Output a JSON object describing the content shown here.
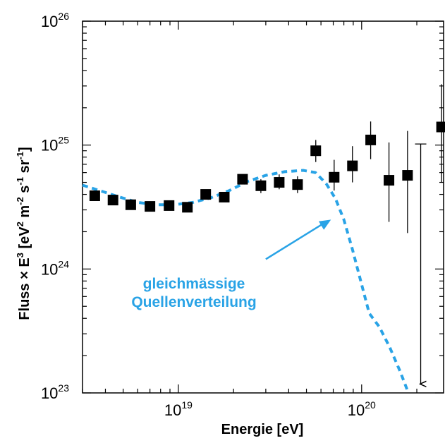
{
  "chart_data": {
    "type": "scatter",
    "xscale": "log",
    "yscale": "log",
    "xlim": [
      3e+18,
      2.8e+20
    ],
    "ylim": [
      1e+23,
      1e+26
    ],
    "x_ticks": [
      {
        "value": 1e+19,
        "base": "10",
        "exp": "19"
      },
      {
        "value": 1e+20,
        "base": "10",
        "exp": "20"
      }
    ],
    "y_ticks": [
      {
        "value": 1e+23,
        "base": "10",
        "exp": "23"
      },
      {
        "value": 1e+24,
        "base": "10",
        "exp": "24"
      },
      {
        "value": 1e+25,
        "base": "10",
        "exp": "25"
      },
      {
        "value": 1e+26,
        "base": "10",
        "exp": "26"
      }
    ],
    "xlabel": "Energie [eV]",
    "ylabel": {
      "parts": [
        {
          "t": "Fluss × E",
          "sup": false
        },
        {
          "t": "3",
          "sup": true
        },
        {
          "t": " [eV",
          "sup": false
        },
        {
          "t": "2",
          "sup": true
        },
        {
          "t": " m",
          "sup": false
        },
        {
          "t": "-2",
          "sup": true
        },
        {
          "t": " s",
          "sup": false
        },
        {
          "t": "-1",
          "sup": true
        },
        {
          "t": " sr",
          "sup": false
        },
        {
          "t": "-1",
          "sup": true
        },
        {
          "t": "]",
          "sup": false
        }
      ]
    },
    "grid": false,
    "series": [
      {
        "style": "markers",
        "color": "#000000",
        "points": [
          {
            "x": 3.5e+18,
            "y": 3.9e+24
          },
          {
            "x": 4.4e+18,
            "y": 3.6e+24
          },
          {
            "x": 5.5e+18,
            "y": 3.3e+24
          },
          {
            "x": 7e+18,
            "y": 3.2e+24
          },
          {
            "x": 8.9e+18,
            "y": 3.25e+24
          },
          {
            "x": 1.12e+19,
            "y": 3.15e+24
          },
          {
            "x": 1.41e+19,
            "y": 4e+24
          },
          {
            "x": 1.78e+19,
            "y": 3.8e+24
          },
          {
            "x": 2.24e+19,
            "y": 5.3e+24
          },
          {
            "x": 2.82e+19,
            "y": 4.7e+24,
            "yerr": [
              4.1e+24,
              5.3e+24
            ]
          },
          {
            "x": 3.55e+19,
            "y": 5e+24,
            "yerr": [
              4.4e+24,
              5.8e+24
            ]
          },
          {
            "x": 4.47e+19,
            "y": 4.8e+24,
            "yerr": [
              4.1e+24,
              5.6e+24
            ]
          },
          {
            "x": 5.62e+19,
            "y": 9e+24,
            "yerr": [
              7.3e+24,
              1.1e+25
            ]
          },
          {
            "x": 7.08e+19,
            "y": 5.5e+24,
            "yerr": [
              4.3e+24,
              7.6e+24
            ]
          },
          {
            "x": 8.91e+19,
            "y": 6.8e+24,
            "yerr": [
              5e+24,
              9.8e+24
            ]
          },
          {
            "x": 1.12e+20,
            "y": 1.1e+25,
            "yerr": [
              7.7e+24,
              1.55e+25
            ]
          },
          {
            "x": 1.41e+20,
            "y": 5.2e+24,
            "yerr": [
              2.4e+24,
              1.05e+25
            ]
          },
          {
            "x": 1.78e+20,
            "y": 5.7e+24,
            "yerr": [
              1.95e+24,
              1.3e+25
            ]
          },
          {
            "x": 2.73e+20,
            "y": 1.4e+25,
            "yerr": [
              5e+24,
              3.1e+25
            ]
          }
        ]
      },
      {
        "style": "upper-limit",
        "color": "#000000",
        "points": [
          {
            "x": 2.1e+20,
            "y": 1.02e+25,
            "y_to": 1.18e+23
          }
        ]
      },
      {
        "style": "dashed-line",
        "color": "#29a3e6",
        "points": [
          {
            "x": 3e+18,
            "y": 4.75e+24
          },
          {
            "x": 3.8e+18,
            "y": 4.25e+24
          },
          {
            "x": 4.8e+18,
            "y": 3.8e+24
          },
          {
            "x": 6e+18,
            "y": 3.45e+24
          },
          {
            "x": 7.5e+18,
            "y": 3.3e+24
          },
          {
            "x": 9.5e+18,
            "y": 3.3e+24
          },
          {
            "x": 1.2e+19,
            "y": 3.45e+24
          },
          {
            "x": 1.5e+19,
            "y": 3.75e+24
          },
          {
            "x": 1.9e+19,
            "y": 4.3e+24
          },
          {
            "x": 2.4e+19,
            "y": 5.1e+24
          },
          {
            "x": 3e+19,
            "y": 5.7e+24
          },
          {
            "x": 3.8e+19,
            "y": 6.1e+24
          },
          {
            "x": 4.8e+19,
            "y": 6.25e+24
          },
          {
            "x": 5.6e+19,
            "y": 6e+24
          },
          {
            "x": 6.4e+19,
            "y": 4.9e+24
          },
          {
            "x": 7.2e+19,
            "y": 3.7e+24
          },
          {
            "x": 8e+19,
            "y": 2.5e+24
          },
          {
            "x": 8.9e+19,
            "y": 1.45e+24
          },
          {
            "x": 1e+20,
            "y": 7.5e+23
          },
          {
            "x": 1.1e+20,
            "y": 4.4e+23
          },
          {
            "x": 1.25e+20,
            "y": 3.4e+23
          },
          {
            "x": 1.42e+20,
            "y": 2.35e+23
          },
          {
            "x": 1.62e+20,
            "y": 1.5e+23
          },
          {
            "x": 1.8e+20,
            "y": 1e+23
          }
        ]
      }
    ],
    "annotation": {
      "lines": [
        "gleichmässige",
        "Quellenverteilung"
      ],
      "color": "#29a3e6",
      "arrow_from": {
        "x": 3e+19,
        "y": 1.2e+24
      },
      "arrow_to": {
        "x": 6.8e+19,
        "y": 2.5e+24
      }
    }
  }
}
